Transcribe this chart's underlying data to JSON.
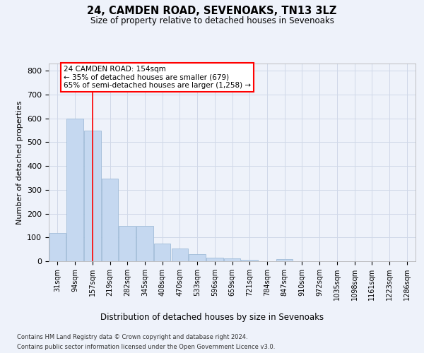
{
  "title1": "24, CAMDEN ROAD, SEVENOAKS, TN13 3LZ",
  "title2": "Size of property relative to detached houses in Sevenoaks",
  "xlabel": "Distribution of detached houses by size in Sevenoaks",
  "ylabel": "Number of detached properties",
  "categories": [
    "31sqm",
    "94sqm",
    "157sqm",
    "219sqm",
    "282sqm",
    "345sqm",
    "408sqm",
    "470sqm",
    "533sqm",
    "596sqm",
    "659sqm",
    "721sqm",
    "784sqm",
    "847sqm",
    "910sqm",
    "972sqm",
    "1035sqm",
    "1098sqm",
    "1161sqm",
    "1223sqm",
    "1286sqm"
  ],
  "values": [
    120,
    600,
    548,
    347,
    147,
    147,
    75,
    53,
    30,
    15,
    13,
    5,
    0,
    8,
    0,
    0,
    0,
    0,
    0,
    0,
    0
  ],
  "bar_color": "#c5d8f0",
  "bar_edge_color": "#a0bcd8",
  "grid_color": "#d0d8e8",
  "annotation_box_text": "24 CAMDEN ROAD: 154sqm\n← 35% of detached houses are smaller (679)\n65% of semi-detached houses are larger (1,258) →",
  "ylim": [
    0,
    830
  ],
  "yticks": [
    0,
    100,
    200,
    300,
    400,
    500,
    600,
    700,
    800
  ],
  "footer1": "Contains HM Land Registry data © Crown copyright and database right 2024.",
  "footer2": "Contains public sector information licensed under the Open Government Licence v3.0.",
  "bg_color": "#eef2fa",
  "plot_bg_color": "#eef2fa",
  "red_line_x": 2
}
